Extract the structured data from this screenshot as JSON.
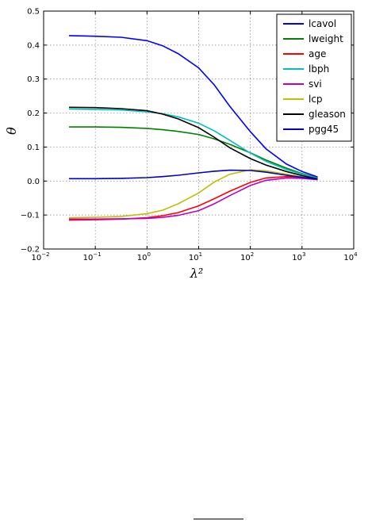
{
  "chart_data": {
    "type": "line",
    "title": "",
    "xlabel": "λ²",
    "ylabel": "θ",
    "xscale": "log",
    "xlim": [
      0.01,
      10000
    ],
    "ylim": [
      -0.2,
      0.5
    ],
    "yticks": [
      "−0.2",
      "−0.1",
      "0.0",
      "0.1",
      "0.2",
      "0.3",
      "0.4",
      "0.5"
    ],
    "xticks": [
      {
        "base": "10",
        "exp": "-2",
        "value": 0.01
      },
      {
        "base": "10",
        "exp": "-1",
        "value": 0.1
      },
      {
        "base": "10",
        "exp": "0",
        "value": 1
      },
      {
        "base": "10",
        "exp": "1",
        "value": 10
      },
      {
        "base": "10",
        "exp": "2",
        "value": 100
      },
      {
        "base": "10",
        "exp": "3",
        "value": 1000
      },
      {
        "base": "10",
        "exp": "4",
        "value": 10000
      }
    ],
    "grid": true,
    "legend_position": "top-right",
    "x": [
      0.031,
      0.1,
      0.316,
      1,
      2,
      4,
      10,
      20,
      40,
      100,
      200,
      500,
      1000,
      2000
    ],
    "series": [
      {
        "name": "lcavol",
        "color": "#0000ff",
        "values": [
          0.428,
          0.426,
          0.423,
          0.413,
          0.398,
          0.375,
          0.333,
          0.283,
          0.22,
          0.145,
          0.095,
          0.05,
          0.028,
          0.012
        ]
      },
      {
        "name": "lweight",
        "color": "#008000",
        "values": [
          0.159,
          0.159,
          0.158,
          0.155,
          0.151,
          0.146,
          0.137,
          0.124,
          0.108,
          0.083,
          0.062,
          0.038,
          0.022,
          0.009
        ]
      },
      {
        "name": "age",
        "color": "#ff0000",
        "values": [
          -0.115,
          -0.114,
          -0.112,
          -0.108,
          -0.102,
          -0.093,
          -0.073,
          -0.052,
          -0.03,
          -0.004,
          0.009,
          0.013,
          0.011,
          0.006
        ]
      },
      {
        "name": "lbph",
        "color": "#00bfbf",
        "values": [
          0.212,
          0.211,
          0.209,
          0.204,
          0.198,
          0.189,
          0.17,
          0.148,
          0.12,
          0.082,
          0.058,
          0.034,
          0.02,
          0.008
        ]
      },
      {
        "name": "svi",
        "color": "#bf00bf",
        "values": [
          -0.112,
          -0.112,
          -0.111,
          -0.11,
          -0.107,
          -0.101,
          -0.087,
          -0.067,
          -0.043,
          -0.013,
          0.002,
          0.009,
          0.008,
          0.004
        ]
      },
      {
        "name": "lcp",
        "color": "#bfbf00",
        "values": [
          -0.108,
          -0.107,
          -0.104,
          -0.096,
          -0.086,
          -0.067,
          -0.035,
          -0.003,
          0.02,
          0.033,
          0.03,
          0.02,
          0.012,
          0.005
        ]
      },
      {
        "name": "gleason",
        "color": "#000000",
        "values": [
          0.217,
          0.216,
          0.213,
          0.207,
          0.197,
          0.183,
          0.157,
          0.129,
          0.098,
          0.066,
          0.047,
          0.028,
          0.016,
          0.006
        ]
      },
      {
        "name": "pgg45",
        "color": "#0000bf",
        "values": [
          0.007,
          0.007,
          0.008,
          0.01,
          0.013,
          0.017,
          0.024,
          0.029,
          0.032,
          0.031,
          0.026,
          0.017,
          0.011,
          0.005
        ]
      }
    ]
  }
}
